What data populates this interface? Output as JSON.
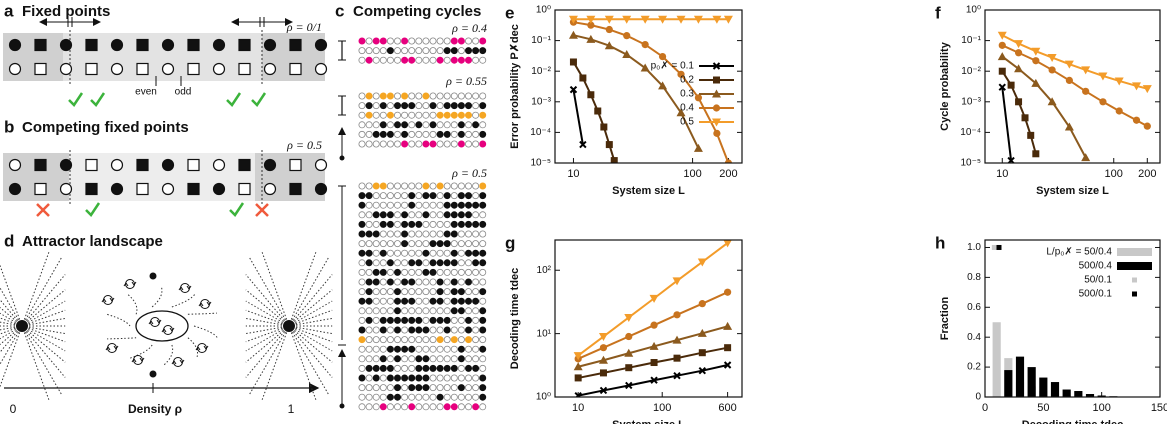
{
  "panels": [
    {
      "label": "a",
      "title": "Fixed points",
      "rho": "ρ = 0/1",
      "notes": [
        "even",
        "odd"
      ]
    },
    {
      "label": "b",
      "title": "Competing fixed points",
      "rho": "ρ = 0.5"
    },
    {
      "label": "c",
      "title": "Competing cycles",
      "rhos": [
        "ρ = 0.4",
        "ρ = 0.55",
        "ρ = 0.5"
      ]
    },
    {
      "label": "d",
      "title": "Attractor landscape",
      "axis_labels": [
        "0",
        "Density  ρ",
        "1"
      ]
    }
  ],
  "chart_data": [
    {
      "type": "line",
      "label": "e",
      "ylabel": "Error probability  P✗dec",
      "xlabel": "System size  L",
      "log_x": true,
      "log_y": true,
      "xlim": [
        7,
        260
      ],
      "ylim": [
        1e-05,
        1
      ],
      "xticks": [
        10,
        100,
        200
      ],
      "yticks": [
        {
          "value": 1e-05,
          "label": "10⁻⁵"
        },
        {
          "value": 0.0001,
          "label": "10⁻⁴"
        },
        {
          "value": 0.001,
          "label": "10⁻³"
        },
        {
          "value": 0.01,
          "label": "10⁻²"
        },
        {
          "value": 0.1,
          "label": "10⁻¹"
        },
        {
          "value": 1,
          "label": "10⁰"
        }
      ],
      "legend": "center right",
      "series": [
        {
          "name": "p₀✗ = 0.1",
          "color": "#000000",
          "marker": "x",
          "x": [
            10,
            12
          ],
          "values": [
            0.0025,
            4e-05
          ]
        },
        {
          "name": "0.2",
          "color": "#4a2a0a",
          "marker": "square",
          "x": [
            10,
            12,
            14,
            16,
            18,
            20,
            22
          ],
          "values": [
            0.02,
            0.006,
            0.0017,
            0.0005,
            0.00015,
            4e-05,
            1.2e-05
          ]
        },
        {
          "name": "0.3",
          "color": "#8b5a1e",
          "marker": "triangle",
          "x": [
            10,
            14,
            20,
            28,
            40,
            56,
            80,
            112
          ],
          "values": [
            0.15,
            0.11,
            0.068,
            0.035,
            0.0127,
            0.0033,
            0.00044,
            3e-05
          ]
        },
        {
          "name": "0.4",
          "color": "#c8731e",
          "marker": "circle",
          "x": [
            10,
            14,
            20,
            28,
            40,
            56,
            80,
            112,
            160,
            200
          ],
          "values": [
            0.4,
            0.32,
            0.23,
            0.145,
            0.074,
            0.03,
            0.0079,
            0.00135,
            9.3e-05,
            1e-05
          ]
        },
        {
          "name": "0.5",
          "color": "#f39c2a",
          "marker": "tri-down",
          "x": [
            10,
            14,
            20,
            28,
            40,
            56,
            80,
            112,
            160,
            200
          ],
          "values": [
            0.5,
            0.5,
            0.5,
            0.5,
            0.5,
            0.5,
            0.5,
            0.5,
            0.5,
            0.5
          ]
        }
      ]
    },
    {
      "type": "line",
      "label": "f",
      "ylabel": "Cycle probability",
      "xlabel": "System size  L",
      "log_x": true,
      "log_y": true,
      "xlim": [
        7,
        260
      ],
      "ylim": [
        1e-05,
        1
      ],
      "xticks": [
        10,
        100,
        200
      ],
      "yticks": [
        {
          "value": 1e-05,
          "label": "10⁻⁵"
        },
        {
          "value": 0.0001,
          "label": "10⁻⁴"
        },
        {
          "value": 0.001,
          "label": "10⁻³"
        },
        {
          "value": 0.01,
          "label": "10⁻²"
        },
        {
          "value": 0.1,
          "label": "10⁻¹"
        },
        {
          "value": 1,
          "label": "10⁰"
        }
      ],
      "series": [
        {
          "color": "#000000",
          "marker": "x",
          "x": [
            10,
            12
          ],
          "values": [
            0.003,
            1.2e-05
          ]
        },
        {
          "color": "#4a2a0a",
          "marker": "square",
          "x": [
            10,
            12,
            14,
            16,
            18,
            20
          ],
          "values": [
            0.01,
            0.0035,
            0.001,
            0.0003,
            8e-05,
            2e-05
          ]
        },
        {
          "color": "#8b5a1e",
          "marker": "triangle",
          "x": [
            10,
            14,
            20,
            28,
            40,
            56
          ],
          "values": [
            0.03,
            0.012,
            0.004,
            0.001,
            0.00015,
            1.5e-05
          ]
        },
        {
          "color": "#c8731e",
          "marker": "circle",
          "x": [
            10,
            14,
            20,
            28,
            40,
            56,
            80,
            112,
            160,
            200
          ],
          "values": [
            0.07,
            0.04,
            0.022,
            0.011,
            0.005,
            0.0022,
            0.001,
            0.0005,
            0.00025,
            0.00016
          ]
        },
        {
          "color": "#f39c2a",
          "marker": "tri-down",
          "x": [
            10,
            14,
            20,
            28,
            40,
            56,
            80,
            112,
            160,
            200
          ],
          "values": [
            0.15,
            0.08,
            0.045,
            0.028,
            0.017,
            0.011,
            0.007,
            0.0048,
            0.0033,
            0.0027
          ]
        }
      ]
    },
    {
      "type": "line",
      "label": "g",
      "ylabel": "Decoding time  tdec",
      "xlabel": "System size  L",
      "log_x": true,
      "log_y": true,
      "xlim": [
        5.3,
        890
      ],
      "ylim": [
        1,
        300
      ],
      "xticks": [
        10,
        100,
        600
      ],
      "yticks": [
        {
          "value": 1,
          "label": "10⁰"
        },
        {
          "value": 10,
          "label": "10¹"
        },
        {
          "value": 100,
          "label": "10²"
        }
      ],
      "series": [
        {
          "color": "#000000",
          "marker": "x",
          "x": [
            10,
            20,
            40,
            80,
            150,
            300,
            600
          ],
          "values": [
            1.05,
            1.27,
            1.52,
            1.84,
            2.17,
            2.6,
            3.2
          ]
        },
        {
          "color": "#4a2a0a",
          "marker": "square",
          "x": [
            10,
            20,
            40,
            80,
            150,
            300,
            600
          ],
          "values": [
            2,
            2.4,
            2.9,
            3.5,
            4.1,
            5,
            6
          ]
        },
        {
          "color": "#8b5a1e",
          "marker": "triangle",
          "x": [
            10,
            20,
            40,
            80,
            150,
            300,
            600
          ],
          "values": [
            3,
            3.8,
            4.9,
            6.3,
            7.9,
            10.1,
            13
          ]
        },
        {
          "color": "#c8731e",
          "marker": "circle",
          "x": [
            10,
            20,
            40,
            80,
            150,
            300,
            600
          ],
          "values": [
            4,
            6,
            9,
            13.6,
            19.8,
            29.7,
            45
          ]
        },
        {
          "color": "#f39c2a",
          "marker": "tri-down",
          "x": [
            10,
            20,
            40,
            80,
            150,
            300,
            600
          ],
          "values": [
            4.5,
            9,
            18,
            36,
            68,
            135,
            270
          ]
        }
      ]
    },
    {
      "type": "bar",
      "label": "h",
      "ylabel": "Fraction",
      "xlabel": "Decoding time  tdec",
      "xlim": [
        0,
        150
      ],
      "ylim": [
        0,
        1.05
      ],
      "xticks": [
        0,
        50,
        100,
        150
      ],
      "yticks": [
        0,
        0.2,
        0.4,
        0.6,
        0.8,
        {
          "value": 1,
          "label": "1.0"
        }
      ],
      "legend": "upper right",
      "series": [
        {
          "name": "L/p₀✗ = 50/0.4",
          "color": "#c8c8c8",
          "marker": "bar",
          "x": [
            10,
            20,
            30,
            40,
            50,
            60,
            70
          ],
          "values": [
            0.5,
            0.26,
            0.1,
            0.07,
            0.04,
            0.02,
            0.01
          ]
        },
        {
          "name": "500/0.4",
          "color": "#000000",
          "marker": "bar",
          "x": [
            20,
            30,
            40,
            50,
            60,
            70,
            80,
            90,
            100,
            110,
            120
          ],
          "values": [
            0.18,
            0.27,
            0.2,
            0.13,
            0.1,
            0.05,
            0.04,
            0.02,
            0.01,
            0.005,
            0.003
          ]
        },
        {
          "name": "50/0.1",
          "color": "#c8c8c8",
          "marker": "square",
          "x": [
            8
          ],
          "values": [
            1
          ]
        },
        {
          "name": "500/0.1",
          "color": "#000000",
          "marker": "square",
          "x": [
            12
          ],
          "values": [
            1
          ]
        }
      ]
    }
  ]
}
